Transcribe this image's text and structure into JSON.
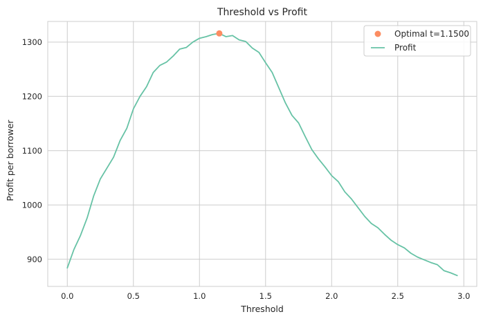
{
  "chart_data": {
    "type": "line",
    "title": "Threshold vs Profit",
    "xlabel": "Threshold",
    "ylabel": "Profit per borrower",
    "xlim": [
      -0.148,
      3.098
    ],
    "ylim": [
      850,
      1338
    ],
    "xticks": [
      0.0,
      0.5,
      1.0,
      1.5,
      2.0,
      2.5,
      3.0
    ],
    "xtick_labels": [
      "0.0",
      "0.5",
      "1.0",
      "1.5",
      "2.0",
      "2.5",
      "3.0"
    ],
    "yticks": [
      900,
      1000,
      1100,
      1200,
      1300
    ],
    "ytick_labels": [
      "900",
      "1000",
      "1100",
      "1200",
      "1300"
    ],
    "grid": true,
    "legend_position": "top-right",
    "series": [
      {
        "name": "Profit",
        "color": "#66c2a5",
        "x": [
          0.0,
          0.05,
          0.1,
          0.15,
          0.2,
          0.25,
          0.3,
          0.35,
          0.4,
          0.45,
          0.5,
          0.55,
          0.6,
          0.65,
          0.7,
          0.75,
          0.8,
          0.85,
          0.9,
          0.95,
          1.0,
          1.05,
          1.1,
          1.15,
          1.2,
          1.25,
          1.3,
          1.35,
          1.4,
          1.45,
          1.5,
          1.55,
          1.6,
          1.65,
          1.7,
          1.75,
          1.8,
          1.85,
          1.9,
          1.95,
          2.0,
          2.05,
          2.1,
          2.15,
          2.2,
          2.25,
          2.3,
          2.35,
          2.4,
          2.45,
          2.5,
          2.55,
          2.6,
          2.65,
          2.7,
          2.75,
          2.8,
          2.85,
          2.9,
          2.95
        ],
        "values": [
          884,
          918,
          944,
          976,
          1017,
          1048,
          1068,
          1088,
          1119,
          1141,
          1177,
          1200,
          1218,
          1244,
          1257,
          1263,
          1274,
          1287,
          1290,
          1300,
          1307,
          1310,
          1314,
          1316,
          1310,
          1312,
          1304,
          1301,
          1289,
          1281,
          1262,
          1244,
          1216,
          1188,
          1165,
          1151,
          1126,
          1102,
          1085,
          1070,
          1054,
          1043,
          1024,
          1011,
          995,
          979,
          966,
          958,
          946,
          935,
          927,
          921,
          911,
          904,
          899,
          894,
          890,
          879,
          875,
          870
        ]
      }
    ],
    "marker": {
      "label": "Optimal t=1.1500",
      "color": "#fc8d62",
      "x": 1.15,
      "y": 1316
    }
  }
}
